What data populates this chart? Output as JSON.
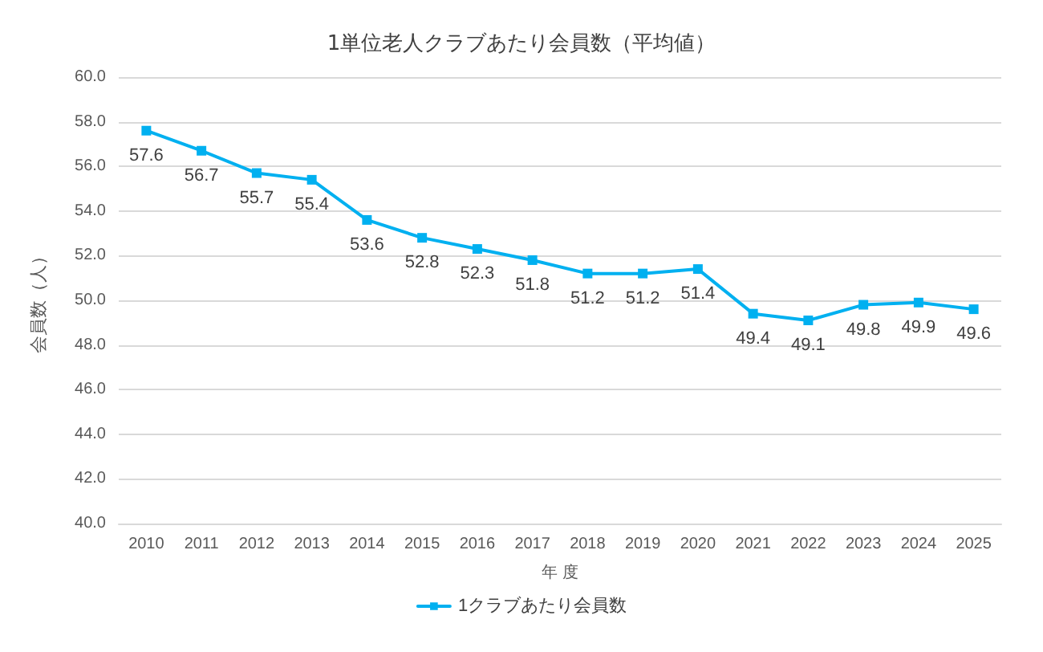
{
  "chart_data": {
    "type": "line",
    "title": "1単位老人クラブあたり会員数（平均値）",
    "xlabel": "年 度",
    "ylabel": "会員数（人）",
    "categories": [
      "2010",
      "2011",
      "2012",
      "2013",
      "2014",
      "2015",
      "2016",
      "2017",
      "2018",
      "2019",
      "2020",
      "2021",
      "2022",
      "2023",
      "2024",
      "2025"
    ],
    "series": [
      {
        "name": "1クラブあたり会員数",
        "color": "#00b0f0",
        "values": [
          57.6,
          56.7,
          55.7,
          55.4,
          53.6,
          52.8,
          52.3,
          51.8,
          51.2,
          51.2,
          51.4,
          49.4,
          49.1,
          49.8,
          49.9,
          49.6
        ]
      }
    ],
    "ylim": [
      40,
      60
    ],
    "yticks": [
      {
        "value": 40,
        "label": "40.0"
      },
      {
        "value": 42,
        "label": "42.0"
      },
      {
        "value": 44,
        "label": "44.0"
      },
      {
        "value": 46,
        "label": "46.0"
      },
      {
        "value": 48,
        "label": "48.0"
      },
      {
        "value": 50,
        "label": "50.0"
      },
      {
        "value": 52,
        "label": "52.0"
      },
      {
        "value": 54,
        "label": "54.0"
      },
      {
        "value": 56,
        "label": "56.0"
      },
      {
        "value": 58,
        "label": "58.0"
      },
      {
        "value": 60,
        "label": "60.0"
      }
    ],
    "grid": "y",
    "legend": "bottom",
    "marker": "square",
    "line_style": "solid",
    "data_labels": true
  }
}
